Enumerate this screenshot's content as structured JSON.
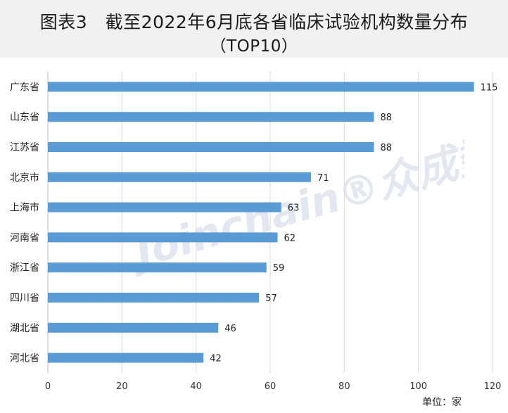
{
  "title": {
    "line1": "图表3　截至2022年6月底各省临床试验机构数量分布",
    "line2": "（TOP10）"
  },
  "unit_label": "单位：家",
  "watermark": "Joinchain®众成数科",
  "colors": {
    "bar": "#5b9bd5",
    "title_band": "#f1f1f1",
    "grid": "#d9d9d9",
    "watermark": "#dfe4ee"
  },
  "chart_data": {
    "type": "bar",
    "orientation": "horizontal",
    "categories": [
      "广东省",
      "山东省",
      "江苏省",
      "北京市",
      "上海市",
      "河南省",
      "浙江省",
      "四川省",
      "湖北省",
      "河北省"
    ],
    "values": [
      115,
      88,
      88,
      71,
      63,
      62,
      59,
      57,
      46,
      42
    ],
    "xlim": [
      0,
      120
    ],
    "xticks": [
      0,
      20,
      40,
      60,
      80,
      100,
      120
    ],
    "grid": true,
    "data_labels": true
  }
}
